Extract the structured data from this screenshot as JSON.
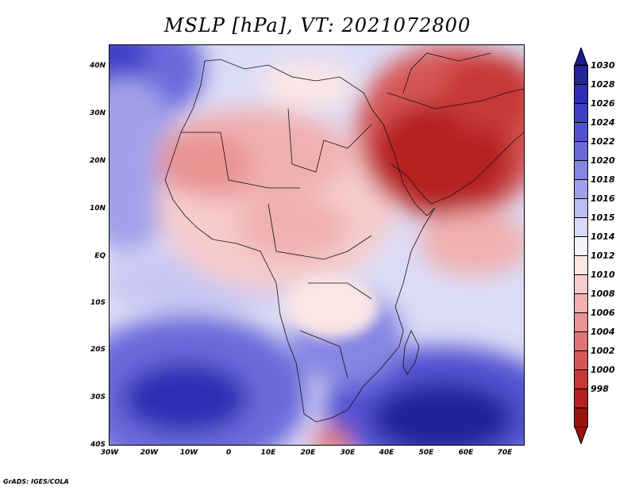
{
  "title": "MSLP [hPa], VT: 2021072800",
  "credit": "GrADS: IGES/COLA",
  "map": {
    "lat_ticks": [
      "40N",
      "30N",
      "20N",
      "10N",
      "EQ",
      "10S",
      "20S",
      "30S",
      "40S"
    ],
    "lon_ticks": [
      "30W",
      "20W",
      "10W",
      "0",
      "10E",
      "20E",
      "30E",
      "40E",
      "50E",
      "60E",
      "70E"
    ],
    "extent": {
      "lon_min": -30,
      "lon_max": 75,
      "lat_min": -40,
      "lat_max": 44
    }
  },
  "colorbar": {
    "labels": [
      "1030",
      "1028",
      "1026",
      "1024",
      "1022",
      "1020",
      "1018",
      "1016",
      "1015",
      "1014",
      "1012",
      "1010",
      "1008",
      "1006",
      "1004",
      "1002",
      "1000",
      "998"
    ],
    "colors": [
      "#23239a",
      "#2e2eb4",
      "#3e3ec6",
      "#5252d2",
      "#6a6adb",
      "#8585e3",
      "#a1a1ea",
      "#bcbcf1",
      "#d9d9f7",
      "#f4f4fb",
      "#fbe6e6",
      "#f6cccc",
      "#f0b0b0",
      "#e99393",
      "#e07474",
      "#d55656",
      "#c83838",
      "#b52020",
      "#9a1313"
    ]
  }
}
